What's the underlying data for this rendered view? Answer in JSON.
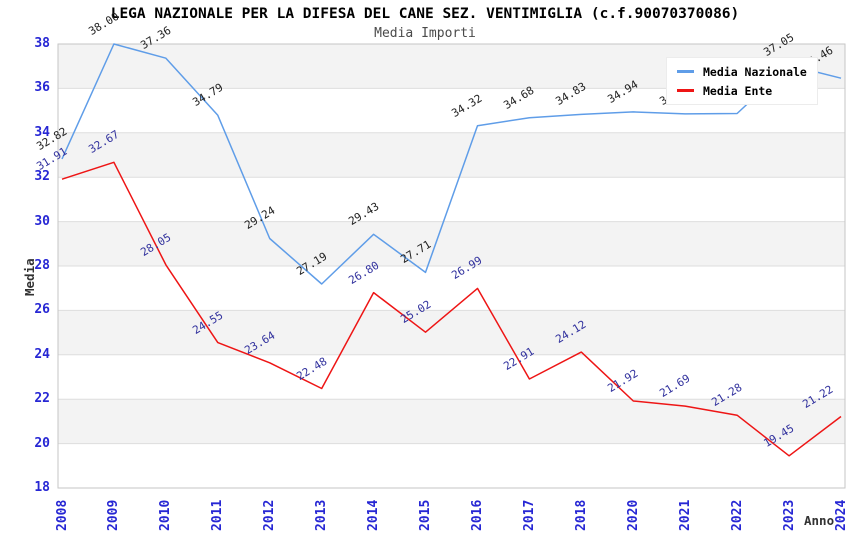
{
  "chart_data": {
    "type": "line",
    "title": "LEGA NAZIONALE PER LA DIFESA DEL CANE SEZ. VENTIMIGLIA (c.f.90070370086)",
    "subtitle": "Media Importi",
    "xlabel": "Anno",
    "ylabel": "Media",
    "x": [
      "2008",
      "2009",
      "2010",
      "2011",
      "2012",
      "2013",
      "2014",
      "2015",
      "2016",
      "2017",
      "2018",
      "2020",
      "2021",
      "2022",
      "2023",
      "2024"
    ],
    "series": [
      {
        "name": "Media Nazionale",
        "color": "#5f9de8",
        "label_color": "#222222",
        "values": [
          32.82,
          38.0,
          37.36,
          34.79,
          29.24,
          27.19,
          29.43,
          27.71,
          34.32,
          34.68,
          34.83,
          34.94,
          34.85,
          34.87,
          37.05,
          36.46
        ]
      },
      {
        "name": "Media Ente",
        "color": "#ee1515",
        "label_color": "#32329e",
        "values": [
          31.91,
          32.67,
          28.05,
          24.55,
          23.64,
          22.48,
          26.8,
          25.02,
          26.99,
          22.91,
          24.12,
          21.92,
          21.69,
          21.28,
          19.45,
          21.22
        ]
      }
    ],
    "ylim": [
      18,
      38
    ],
    "ytick_step": 2,
    "grid": "horizontal-bands",
    "legend_position": "top-right",
    "note_labels_decimals": 2
  },
  "colors": {
    "band": "#f3f3f3",
    "grid": "#dedede",
    "plot_border": "#c6c6c6",
    "axis_tick": "#2727d4"
  }
}
